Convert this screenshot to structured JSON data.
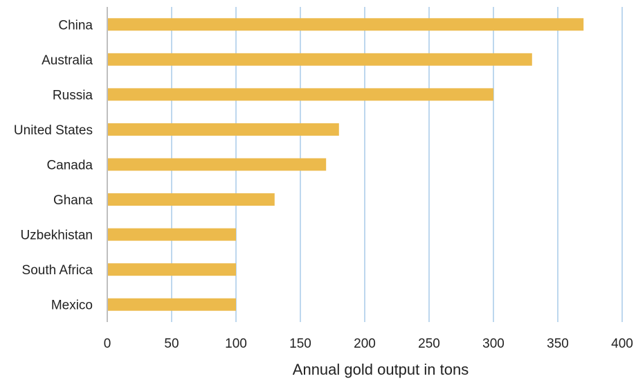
{
  "chart_data": {
    "type": "bar",
    "orientation": "horizontal",
    "categories": [
      "China",
      "Australia",
      "Russia",
      "United States",
      "Canada",
      "Ghana",
      "Uzbekhistan",
      "South Africa",
      "Mexico"
    ],
    "values": [
      370,
      330,
      300,
      180,
      170,
      130,
      100,
      100,
      100
    ],
    "xlabel": "Annual gold output in tons",
    "ylabel": "",
    "xlim": [
      0,
      400
    ],
    "xticks": [
      0,
      50,
      100,
      150,
      200,
      250,
      300,
      350,
      400
    ],
    "grid": "vertical",
    "legend": "none",
    "colors": {
      "bar": "#ECBA4C",
      "grid": "#BDD7EE",
      "axis": "#BFBFBF",
      "text": "#222222"
    }
  }
}
